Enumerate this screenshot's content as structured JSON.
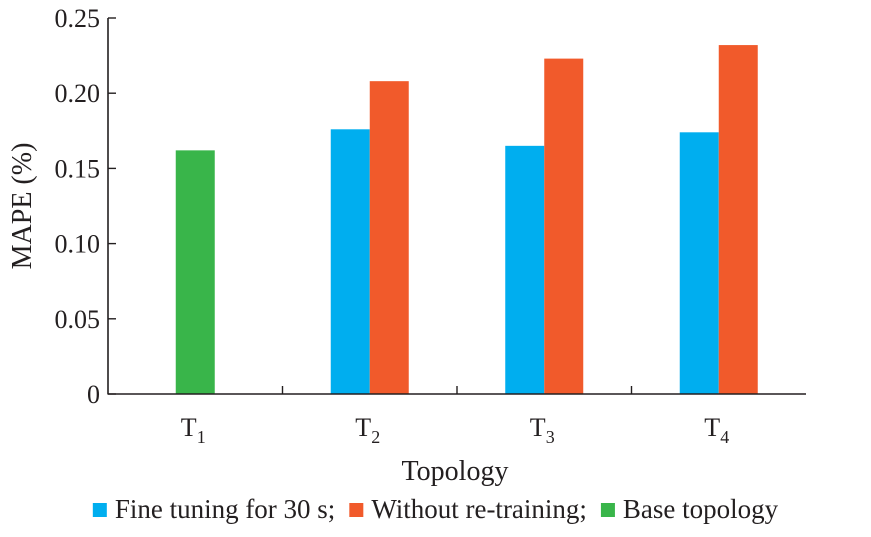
{
  "chart_data": {
    "type": "bar",
    "xlabel": "Topology",
    "ylabel": "MAPE (%)",
    "ylim": [
      0,
      0.25
    ],
    "yticks": [
      "0",
      "0.05",
      "0.10",
      "0.15",
      "0.20",
      "0.25"
    ],
    "categories": [
      {
        "base": "T",
        "sub": "1"
      },
      {
        "base": "T",
        "sub": "2"
      },
      {
        "base": "T",
        "sub": "3"
      },
      {
        "base": "T",
        "sub": "4"
      }
    ],
    "series": [
      {
        "name": "Fine tuning for 30 s;",
        "color": "#00aeef",
        "values": [
          null,
          0.176,
          0.165,
          0.174
        ]
      },
      {
        "name": "Without re-training;",
        "color": "#f15a2b",
        "values": [
          null,
          0.208,
          0.223,
          0.232
        ]
      },
      {
        "name": "Base topology",
        "color": "#39b54a",
        "values": [
          0.162,
          null,
          null,
          null
        ]
      }
    ],
    "legend_position": "bottom",
    "grid": false
  }
}
